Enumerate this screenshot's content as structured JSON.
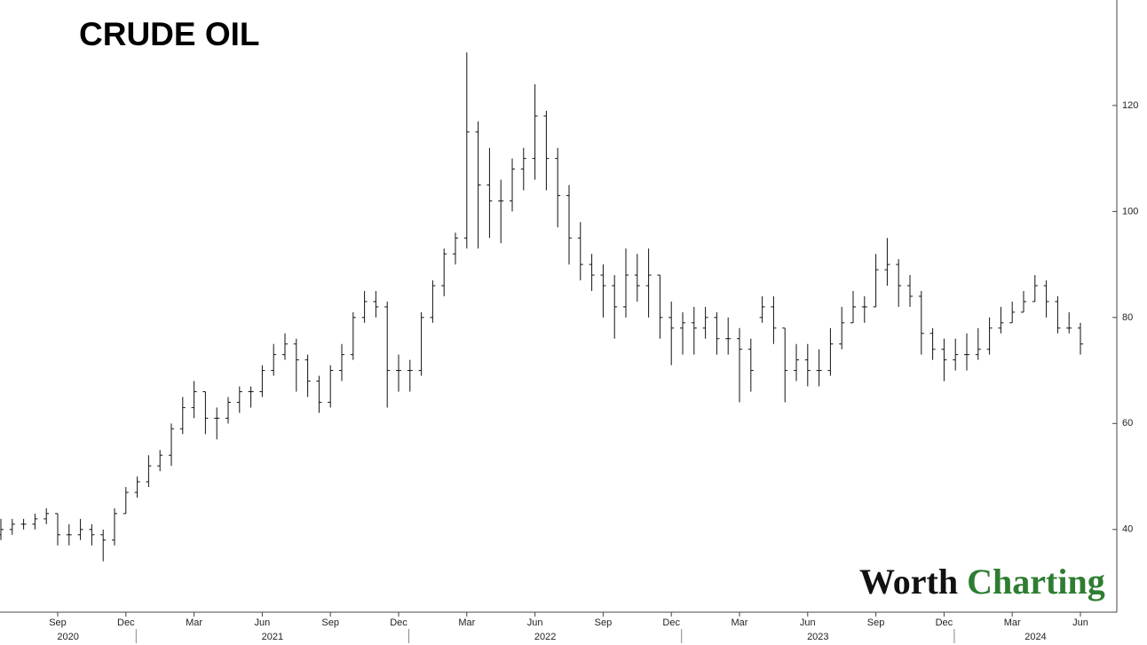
{
  "chart_data": {
    "type": "ohlc",
    "title": "CRUDE OIL",
    "watermark": [
      "Worth",
      "Charting"
    ],
    "color": "#111111",
    "categories": [
      null,
      null,
      null,
      null,
      null,
      "Sep",
      null,
      null,
      null,
      null,
      null,
      "Dec",
      null,
      null,
      null,
      null,
      null,
      "Mar",
      null,
      null,
      null,
      null,
      null,
      "Jun",
      null,
      null,
      null,
      null,
      null,
      "Sep",
      null,
      null,
      null,
      null,
      null,
      "Dec",
      null,
      null,
      null,
      null,
      null,
      "Mar",
      null,
      null,
      null,
      null,
      null,
      "Jun",
      null,
      null,
      null,
      null,
      null,
      "Sep",
      null,
      null,
      null,
      null,
      null,
      "Dec",
      null,
      null,
      null,
      null,
      null,
      "Mar",
      null,
      null,
      null,
      null,
      null,
      "Jun",
      null,
      null,
      null,
      null,
      null,
      "Sep",
      null,
      null,
      null,
      null,
      null,
      "Dec",
      null,
      null,
      null,
      null,
      null,
      "Mar",
      null,
      null,
      null,
      null,
      null,
      "Jun"
    ],
    "years": [
      "2020",
      "2021",
      "2022",
      "2023",
      "2024"
    ],
    "open": [
      39,
      40,
      41,
      41,
      42,
      43,
      39,
      39,
      40,
      39,
      38,
      43,
      47,
      49,
      52,
      54,
      59,
      63,
      66,
      61,
      61,
      64,
      66,
      66,
      70,
      73,
      75,
      72,
      68,
      64,
      70,
      73,
      80,
      83,
      82,
      70,
      70,
      70,
      80,
      86,
      92,
      95,
      115,
      105,
      102,
      102,
      108,
      110,
      118,
      110,
      103,
      95,
      90,
      88,
      86,
      82,
      88,
      86,
      88,
      80,
      78,
      79,
      78,
      80,
      76,
      76,
      74,
      80,
      82,
      78,
      70,
      72,
      70,
      70,
      75,
      79,
      82,
      82,
      89,
      90,
      86,
      84,
      77,
      74,
      72,
      73,
      73,
      74,
      78,
      79,
      81,
      83,
      86,
      83,
      78,
      78
    ],
    "high": [
      42,
      42,
      42,
      43,
      44,
      43,
      41,
      42,
      41,
      40,
      44,
      48,
      50,
      54,
      55,
      60,
      65,
      68,
      66,
      63,
      65,
      67,
      67,
      71,
      75,
      77,
      76,
      73,
      69,
      71,
      75,
      81,
      85,
      85,
      83,
      73,
      72,
      81,
      87,
      93,
      96,
      130,
      117,
      112,
      106,
      110,
      112,
      124,
      119,
      112,
      105,
      98,
      92,
      90,
      88,
      93,
      92,
      93,
      88,
      83,
      81,
      82,
      82,
      81,
      80,
      78,
      76,
      84,
      84,
      78,
      75,
      75,
      74,
      78,
      82,
      85,
      84,
      92,
      95,
      91,
      88,
      85,
      78,
      76,
      76,
      77,
      78,
      80,
      82,
      83,
      85,
      88,
      87,
      84,
      81,
      79
    ],
    "low": [
      38,
      39,
      40,
      40,
      41,
      37,
      37,
      38,
      37,
      34,
      37,
      43,
      46,
      48,
      51,
      52,
      58,
      61,
      58,
      57,
      60,
      62,
      63,
      65,
      69,
      72,
      66,
      65,
      62,
      63,
      68,
      72,
      79,
      80,
      63,
      66,
      66,
      69,
      79,
      84,
      90,
      93,
      93,
      95,
      94,
      100,
      104,
      106,
      104,
      97,
      90,
      87,
      85,
      80,
      76,
      80,
      83,
      80,
      76,
      71,
      73,
      73,
      76,
      73,
      73,
      64,
      66,
      79,
      75,
      64,
      68,
      67,
      67,
      69,
      74,
      79,
      79,
      82,
      86,
      82,
      82,
      73,
      72,
      68,
      70,
      70,
      72,
      73,
      77,
      79,
      81,
      83,
      80,
      77,
      77,
      73
    ],
    "close": [
      40,
      41,
      41,
      42,
      43,
      39,
      39,
      40,
      39,
      38,
      43,
      47,
      49,
      52,
      54,
      59,
      63,
      66,
      61,
      61,
      64,
      66,
      66,
      70,
      73,
      75,
      72,
      68,
      64,
      70,
      73,
      80,
      83,
      82,
      70,
      70,
      70,
      80,
      86,
      92,
      95,
      115,
      105,
      102,
      102,
      108,
      110,
      118,
      110,
      103,
      95,
      90,
      88,
      86,
      82,
      88,
      86,
      88,
      80,
      78,
      79,
      78,
      80,
      76,
      76,
      74,
      70,
      82,
      78,
      70,
      72,
      70,
      70,
      75,
      79,
      82,
      82,
      89,
      90,
      86,
      84,
      77,
      74,
      72,
      73,
      73,
      74,
      78,
      79,
      81,
      83,
      86,
      83,
      78,
      78,
      75
    ],
    "ylim": [
      24.4,
      139.9
    ],
    "yticks": [
      40,
      60,
      80,
      100,
      120
    ]
  }
}
